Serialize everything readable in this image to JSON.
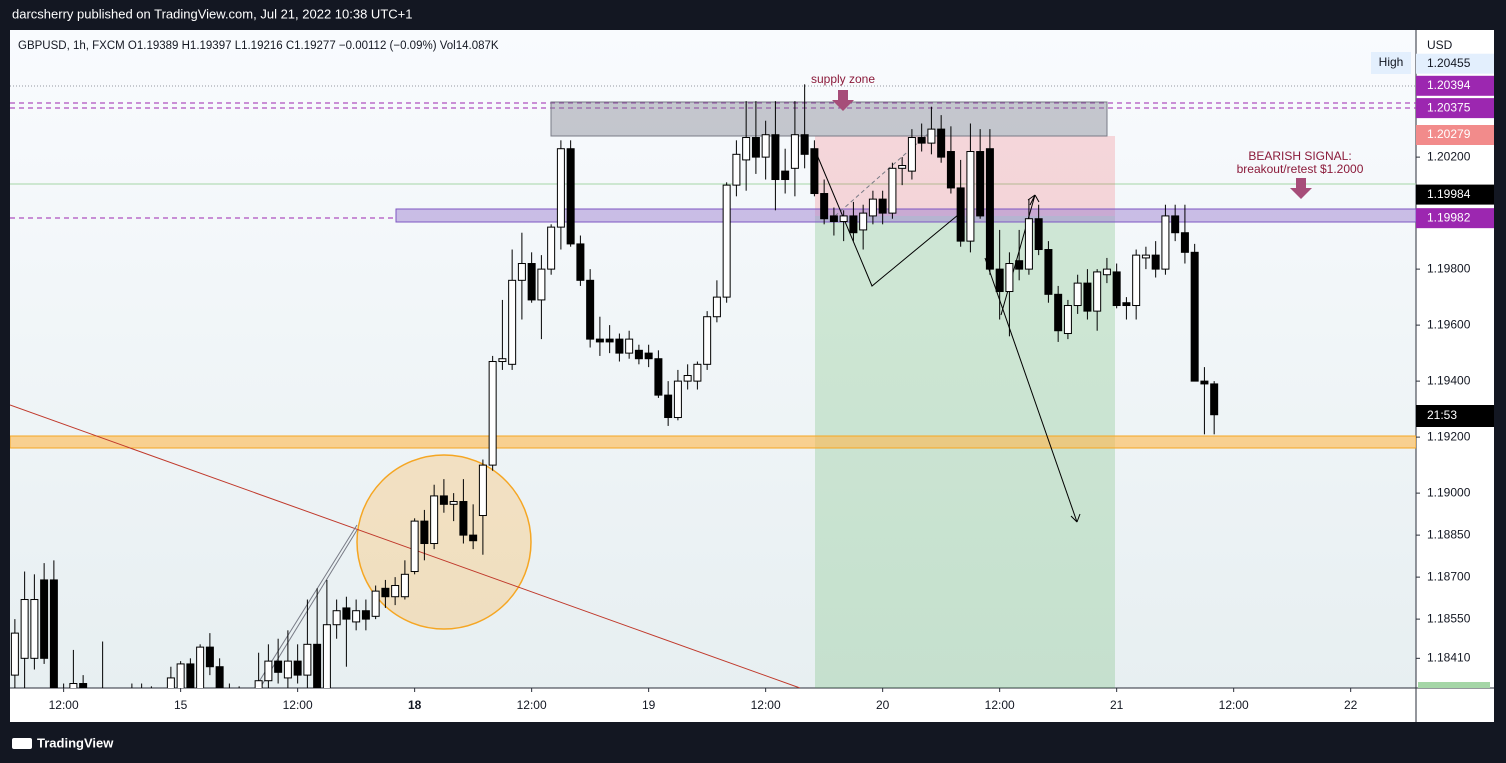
{
  "header": {
    "publisher": "darcsherry published on TradingView.com, Jul 21, 2022 10:38 UTC+1",
    "legend": "GBPUSD, 1h, FXCM  O1.19389  H1.19397  L1.19216  C1.19277  −0.00112 (−0.09%)  Vol14.087K",
    "currency": "USD",
    "high_label": "High",
    "countdown": "21:53"
  },
  "footer": {
    "brand": "TradingView"
  },
  "annotations": {
    "supply": "supply zone",
    "signal_1": "BEARISH SIGNAL:",
    "signal_2": "breakout/retest $1.2000"
  },
  "chart_data": {
    "type": "candlestick",
    "grid": false,
    "up_color": "#ffffff",
    "down_color": "#000000",
    "wick_color": "#000000",
    "ylim": [
      1.18304,
      1.20654
    ],
    "xlim": [
      -0.5,
      143.7
    ],
    "yticks": [
      {
        "value": 1.202,
        "label": "1.20200"
      },
      {
        "value": 1.198,
        "label": "1.19800"
      },
      {
        "value": 1.196,
        "label": "1.19600"
      },
      {
        "value": 1.194,
        "label": "1.19400"
      },
      {
        "value": 1.192,
        "label": "1.19200"
      },
      {
        "value": 1.19,
        "label": "1.19000"
      },
      {
        "value": 1.1885,
        "label": "1.18850"
      },
      {
        "value": 1.187,
        "label": "1.18700"
      },
      {
        "value": 1.1855,
        "label": "1.18550"
      },
      {
        "value": 1.1841,
        "label": "1.18410"
      }
    ],
    "xticks": [
      {
        "value": 5,
        "label": "12:00"
      },
      {
        "value": 17,
        "label": "15"
      },
      {
        "value": 29,
        "label": "12:00"
      },
      {
        "value": 41,
        "label": "18"
      },
      {
        "value": 53,
        "label": "12:00"
      },
      {
        "value": 65,
        "label": "19"
      },
      {
        "value": 77,
        "label": "12:00"
      },
      {
        "value": 89,
        "label": "20"
      },
      {
        "value": 101,
        "label": "12:00"
      },
      {
        "value": 113,
        "label": "21"
      },
      {
        "value": 125,
        "label": "12:00"
      },
      {
        "value": 137,
        "label": "22"
      }
    ],
    "price_labels": [
      {
        "value": 1.20455,
        "label": "1.20455",
        "color": "#e3effd"
      },
      {
        "value": 1.20394,
        "label": "1.20394",
        "color": "#9c27b0"
      },
      {
        "value": 1.20375,
        "label": "1.20375",
        "color": "#9c27b0"
      },
      {
        "value": 1.20279,
        "label": "1.20279",
        "color": "#f28b8b"
      },
      {
        "value": 1.19984,
        "label": "1.19984",
        "color": "#000000"
      },
      {
        "value": 1.19982,
        "label": "1.19982",
        "color": "#9c27b0"
      }
    ],
    "ohlc": [
      [
        1.1835,
        1.1855,
        1.183,
        1.185
      ],
      [
        1.1841,
        1.1872,
        1.183,
        1.1862
      ],
      [
        1.1841,
        1.1871,
        1.1837,
        1.1862
      ],
      [
        1.1869,
        1.1875,
        1.1839,
        1.1841
      ],
      [
        1.1869,
        1.1876,
        1.183,
        1.183
      ],
      [
        1.183,
        1.1832,
        1.182,
        1.1825
      ],
      [
        1.1825,
        1.1844,
        1.182,
        1.1832
      ],
      [
        1.1832,
        1.1835,
        1.1822,
        1.1826
      ],
      [
        1.1826,
        1.1828,
        1.1818,
        1.1822
      ],
      [
        1.1822,
        1.1847,
        1.182,
        1.1828
      ],
      [
        1.1828,
        1.183,
        1.1815,
        1.182
      ],
      [
        1.182,
        1.1825,
        1.1812,
        1.1818
      ],
      [
        1.1818,
        1.1832,
        1.1815,
        1.1829
      ],
      [
        1.1829,
        1.1832,
        1.1822,
        1.183
      ],
      [
        1.183,
        1.1831,
        1.182,
        1.1824
      ],
      [
        1.1824,
        1.1826,
        1.1815,
        1.182
      ],
      [
        1.182,
        1.1838,
        1.1818,
        1.1834
      ],
      [
        1.183,
        1.184,
        1.1825,
        1.1839
      ],
      [
        1.1839,
        1.1841,
        1.1825,
        1.183
      ],
      [
        1.183,
        1.1846,
        1.1825,
        1.1845
      ],
      [
        1.1845,
        1.185,
        1.1835,
        1.1838
      ],
      [
        1.1838,
        1.1841,
        1.1825,
        1.183
      ],
      [
        1.183,
        1.1832,
        1.182,
        1.1826
      ],
      [
        1.1826,
        1.1831,
        1.1818,
        1.1828
      ],
      [
        1.1828,
        1.183,
        1.182,
        1.1826
      ],
      [
        1.1826,
        1.1843,
        1.1824,
        1.1833
      ],
      [
        1.1833,
        1.1846,
        1.1829,
        1.184
      ],
      [
        1.184,
        1.1848,
        1.1832,
        1.1836
      ],
      [
        1.1834,
        1.1851,
        1.183,
        1.184
      ],
      [
        1.184,
        1.1846,
        1.1832,
        1.1835
      ],
      [
        1.1835,
        1.1862,
        1.183,
        1.1846
      ],
      [
        1.1846,
        1.1866,
        1.1829,
        1.183
      ],
      [
        1.183,
        1.1869,
        1.1828,
        1.1853
      ],
      [
        1.1853,
        1.1862,
        1.1848,
        1.1858
      ],
      [
        1.1859,
        1.1863,
        1.1838,
        1.1855
      ],
      [
        1.1854,
        1.1862,
        1.1851,
        1.1858
      ],
      [
        1.1858,
        1.1862,
        1.1851,
        1.1855
      ],
      [
        1.1856,
        1.1867,
        1.1855,
        1.1865
      ],
      [
        1.1866,
        1.1869,
        1.1859,
        1.1863
      ],
      [
        1.1863,
        1.187,
        1.186,
        1.1867
      ],
      [
        1.1863,
        1.1876,
        1.1862,
        1.1871
      ],
      [
        1.1872,
        1.1891,
        1.1871,
        1.189
      ],
      [
        1.189,
        1.1894,
        1.1876,
        1.1882
      ],
      [
        1.1882,
        1.1903,
        1.188,
        1.1899
      ],
      [
        1.1899,
        1.1905,
        1.1893,
        1.1896
      ],
      [
        1.1896,
        1.19,
        1.189,
        1.1897
      ],
      [
        1.1897,
        1.1905,
        1.1882,
        1.1885
      ],
      [
        1.1885,
        1.1896,
        1.188,
        1.1883
      ],
      [
        1.1892,
        1.1912,
        1.1878,
        1.191
      ],
      [
        1.191,
        1.1949,
        1.1908,
        1.1947
      ],
      [
        1.1947,
        1.1969,
        1.1944,
        1.1948
      ],
      [
        1.1946,
        1.1987,
        1.1944,
        1.1976
      ],
      [
        1.1976,
        1.1993,
        1.1962,
        1.1982
      ],
      [
        1.1982,
        1.1986,
        1.1968,
        1.1969
      ],
      [
        1.1969,
        1.1985,
        1.1955,
        1.198
      ],
      [
        1.198,
        1.1996,
        1.1978,
        1.1995
      ],
      [
        1.1995,
        1.2026,
        1.1987,
        1.2023
      ],
      [
        1.2023,
        1.2026,
        1.1988,
        1.1989
      ],
      [
        1.1989,
        1.1992,
        1.1974,
        1.1976
      ],
      [
        1.1976,
        1.198,
        1.1952,
        1.1955
      ],
      [
        1.1955,
        1.1963,
        1.1949,
        1.1954
      ],
      [
        1.1955,
        1.196,
        1.195,
        1.1954
      ],
      [
        1.1955,
        1.1957,
        1.1947,
        1.195
      ],
      [
        1.195,
        1.1958,
        1.1948,
        1.1955
      ],
      [
        1.1951,
        1.1953,
        1.1946,
        1.1948
      ],
      [
        1.195,
        1.1953,
        1.1945,
        1.1948
      ],
      [
        1.1948,
        1.1951,
        1.1934,
        1.1935
      ],
      [
        1.1935,
        1.194,
        1.1924,
        1.1927
      ],
      [
        1.1927,
        1.1944,
        1.1926,
        1.194
      ],
      [
        1.194,
        1.1946,
        1.1937,
        1.1942
      ],
      [
        1.194,
        1.1947,
        1.1937,
        1.1946
      ],
      [
        1.1946,
        1.1965,
        1.1944,
        1.1963
      ],
      [
        1.1963,
        1.1976,
        1.1961,
        1.197
      ],
      [
        1.197,
        1.2011,
        1.1968,
        1.201
      ],
      [
        1.201,
        1.2026,
        1.2006,
        1.2021
      ],
      [
        1.2019,
        1.204,
        1.2008,
        1.2027
      ],
      [
        1.2027,
        1.204,
        1.2014,
        1.202
      ],
      [
        1.202,
        1.2033,
        1.2012,
        1.2028
      ],
      [
        1.2028,
        1.204,
        1.2001,
        1.2012
      ],
      [
        1.2015,
        1.2023,
        1.2007,
        1.2012
      ],
      [
        1.2016,
        1.204,
        1.2006,
        1.2028
      ],
      [
        1.2028,
        1.2046,
        1.2016,
        1.2021
      ],
      [
        1.2023,
        1.2026,
        1.2006,
        1.2007
      ],
      [
        1.2007,
        1.2012,
        1.1996,
        1.1998
      ],
      [
        1.1999,
        1.2002,
        1.1992,
        1.1997
      ],
      [
        1.1997,
        1.2001,
        1.199,
        1.1999
      ],
      [
        1.1999,
        1.2004,
        1.199,
        1.1993
      ],
      [
        1.1994,
        1.2003,
        1.1987,
        1.2
      ],
      [
        1.1999,
        1.2008,
        1.1996,
        1.2005
      ],
      [
        1.2005,
        1.2008,
        1.1996,
        1.2
      ],
      [
        1.2,
        1.2018,
        1.1998,
        1.2016
      ],
      [
        1.2016,
        1.202,
        1.201,
        1.2017
      ],
      [
        1.2015,
        1.203,
        1.2012,
        1.2027
      ],
      [
        1.2027,
        1.2032,
        1.2022,
        1.2025
      ],
      [
        1.2025,
        1.2038,
        1.2021,
        1.203
      ],
      [
        1.203,
        1.2035,
        1.2018,
        1.202
      ],
      [
        1.2022,
        1.2031,
        1.2007,
        1.2009
      ],
      [
        1.2009,
        1.2019,
        1.1988,
        1.199
      ],
      [
        1.199,
        1.2032,
        1.1986,
        1.2022
      ],
      [
        1.2022,
        1.203,
        1.1998,
        1.1999
      ],
      [
        1.2023,
        1.203,
        1.1978,
        1.198
      ],
      [
        1.198,
        1.1994,
        1.1962,
        1.1972
      ],
      [
        1.1972,
        1.1986,
        1.1956,
        1.1982
      ],
      [
        1.1983,
        1.1994,
        1.1976,
        1.198
      ],
      [
        1.198,
        1.2005,
        1.1978,
        1.1998
      ],
      [
        1.1998,
        1.2003,
        1.1985,
        1.1987
      ],
      [
        1.1987,
        1.199,
        1.1968,
        1.1971
      ],
      [
        1.1971,
        1.1974,
        1.1954,
        1.1958
      ],
      [
        1.1957,
        1.1969,
        1.1955,
        1.1967
      ],
      [
        1.1967,
        1.1978,
        1.1964,
        1.1975
      ],
      [
        1.1975,
        1.198,
        1.1962,
        1.1965
      ],
      [
        1.1965,
        1.198,
        1.1958,
        1.1979
      ],
      [
        1.1978,
        1.1984,
        1.1975,
        1.198
      ],
      [
        1.1979,
        1.1982,
        1.1966,
        1.1967
      ],
      [
        1.1968,
        1.197,
        1.1962,
        1.1967
      ],
      [
        1.1967,
        1.1987,
        1.1962,
        1.1985
      ],
      [
        1.1984,
        1.1988,
        1.198,
        1.1985
      ],
      [
        1.1985,
        1.199,
        1.1977,
        1.198
      ],
      [
        1.198,
        1.2003,
        1.1978,
        1.1999
      ],
      [
        1.1999,
        1.2003,
        1.199,
        1.1993
      ],
      [
        1.1993,
        1.2003,
        1.1982,
        1.1986
      ],
      [
        1.1986,
        1.1989,
        1.194,
        1.194
      ],
      [
        1.194,
        1.1945,
        1.1921,
        1.1939
      ],
      [
        1.1939,
        1.194,
        1.1921,
        1.1928
      ]
    ]
  }
}
